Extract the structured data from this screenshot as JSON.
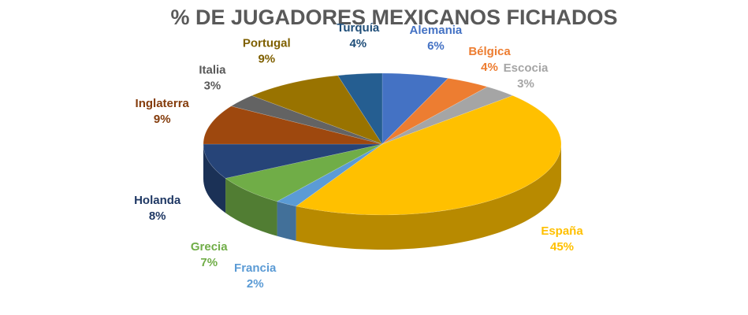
{
  "chart_data": {
    "type": "pie",
    "title": "% DE JUGADORES MEXICANOS FICHADOS",
    "legend": "none",
    "slices": [
      {
        "name": "Alemania",
        "value": 6,
        "label": "6%",
        "color": "#4472C4"
      },
      {
        "name": "Bélgica",
        "value": 4,
        "label": "4%",
        "color": "#ED7D31"
      },
      {
        "name": "Escocia",
        "value": 3,
        "label": "3%",
        "color": "#A5A5A5"
      },
      {
        "name": "España",
        "value": 45,
        "label": "45%",
        "color": "#FFC000"
      },
      {
        "name": "Francia",
        "value": 2,
        "label": "2%",
        "color": "#5B9BD5"
      },
      {
        "name": "Grecia",
        "value": 7,
        "label": "7%",
        "color": "#70AD47"
      },
      {
        "name": "Holanda",
        "value": 8,
        "label": "8%",
        "color": "#264478"
      },
      {
        "name": "Inglaterra",
        "value": 9,
        "label": "9%",
        "color": "#9E480E"
      },
      {
        "name": "Italia",
        "value": 3,
        "label": "3%",
        "color": "#636363"
      },
      {
        "name": "Portugal",
        "value": 9,
        "label": "9%",
        "color": "#997300"
      },
      {
        "name": "Turquía",
        "value": 4,
        "label": "4%",
        "color": "#255E91"
      }
    ]
  }
}
